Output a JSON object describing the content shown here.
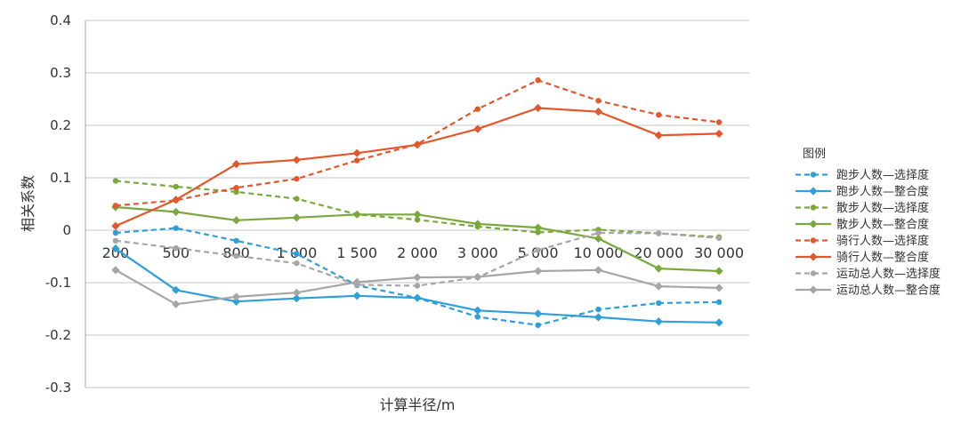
{
  "chart_data": {
    "type": "line",
    "categories": [
      "200",
      "500",
      "800",
      "1 000",
      "1 500",
      "2 000",
      "3 000",
      "5 000",
      "10 000",
      "20 000",
      "30 000"
    ],
    "xlabel": "计算半径/m",
    "ylabel": "相关系数",
    "ylim": [
      -0.3,
      0.4
    ],
    "yticks": [
      "0.4",
      "0.3",
      "0.2",
      "0.1",
      "0",
      "-0.1",
      "-0.2",
      "-0.3"
    ],
    "grid": true,
    "legend_title": "图例",
    "legend_position": "right",
    "series": [
      {
        "name": "跑步人数—选择度",
        "color": "#2e9fd8",
        "dashed": true,
        "values": [
          -0.005,
          0.004,
          -0.02,
          -0.045,
          -0.105,
          -0.129,
          -0.165,
          -0.181,
          -0.151,
          -0.139,
          -0.137
        ]
      },
      {
        "name": "跑步人数—整合度",
        "color": "#2e9fd8",
        "dashed": false,
        "values": [
          -0.035,
          -0.114,
          -0.136,
          -0.13,
          -0.125,
          -0.129,
          -0.153,
          -0.159,
          -0.166,
          -0.174,
          -0.176
        ]
      },
      {
        "name": "散步人数—选择度",
        "color": "#7aa83c",
        "dashed": true,
        "values": [
          0.094,
          0.083,
          0.073,
          0.06,
          0.03,
          0.02,
          0.007,
          -0.004,
          0.001,
          -0.006,
          -0.013
        ]
      },
      {
        "name": "散步人数—整合度",
        "color": "#7aa83c",
        "dashed": false,
        "values": [
          0.044,
          0.035,
          0.019,
          0.024,
          0.03,
          0.03,
          0.012,
          0.005,
          -0.016,
          -0.073,
          -0.078
        ]
      },
      {
        "name": "骑行人数—选择度",
        "color": "#e2582c",
        "dashed": true,
        "values": [
          0.047,
          0.057,
          0.081,
          0.098,
          0.133,
          0.164,
          0.231,
          0.286,
          0.247,
          0.22,
          0.206
        ]
      },
      {
        "name": "骑行人数—整合度",
        "color": "#e2582c",
        "dashed": false,
        "values": [
          0.008,
          0.058,
          0.126,
          0.134,
          0.147,
          0.163,
          0.193,
          0.233,
          0.226,
          0.181,
          0.184
        ]
      },
      {
        "name": "运动总人数—选择度",
        "color": "#a6a6a6",
        "dashed": true,
        "values": [
          -0.02,
          -0.034,
          -0.049,
          -0.063,
          -0.104,
          -0.106,
          -0.09,
          -0.038,
          -0.005,
          -0.006,
          -0.015
        ]
      },
      {
        "name": "运动总人数—整合度",
        "color": "#a6a6a6",
        "dashed": false,
        "values": [
          -0.076,
          -0.141,
          -0.127,
          -0.119,
          -0.099,
          -0.09,
          -0.089,
          -0.078,
          -0.076,
          -0.107,
          -0.11
        ]
      }
    ]
  }
}
